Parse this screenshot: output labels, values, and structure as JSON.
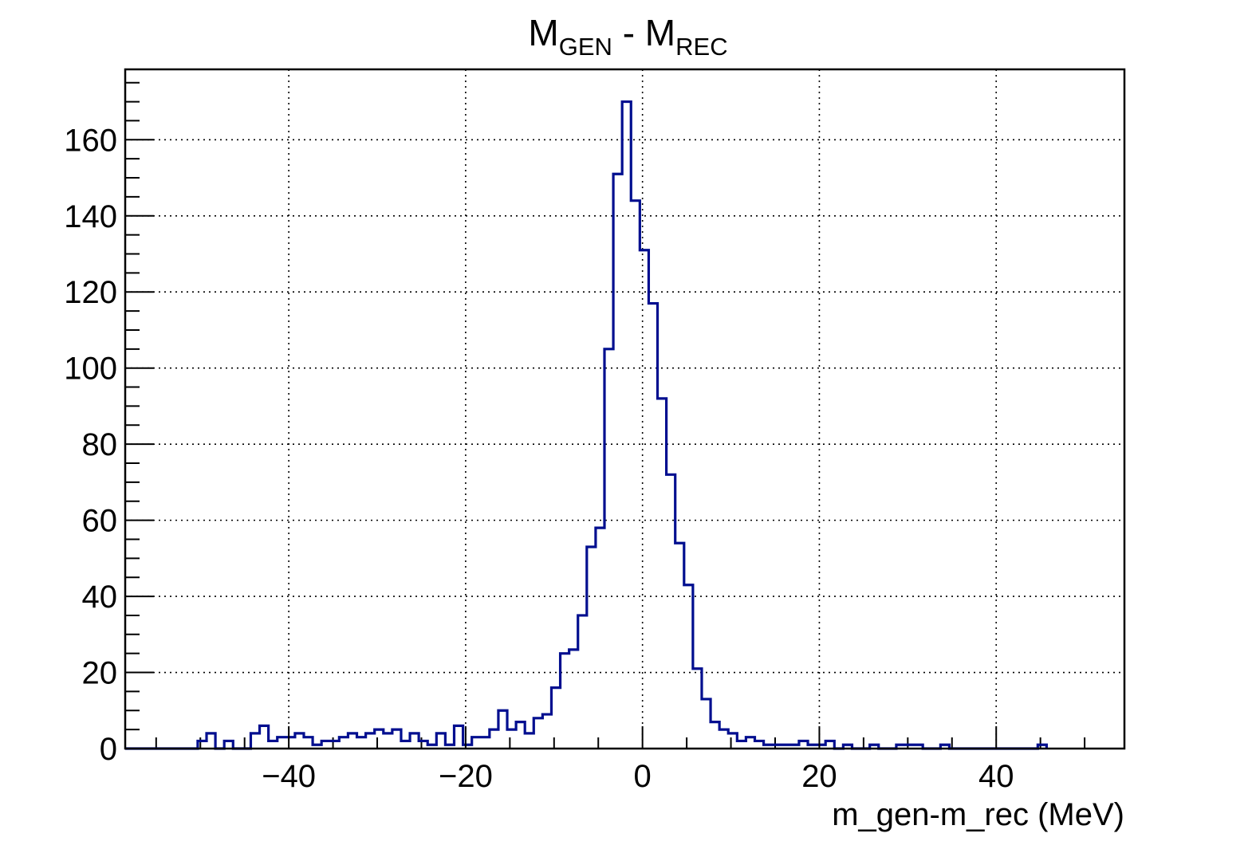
{
  "chart_data": {
    "type": "histogram",
    "title": {
      "main1": "M",
      "sub1": "GEN",
      "mid": " - M",
      "sub2": "REC"
    },
    "xlabel": "m_gen-m_rec (MeV)",
    "ylabel": "",
    "xlim": [
      -58.5,
      54.5
    ],
    "ylim": [
      0,
      178.5
    ],
    "grid": true,
    "x_ticks": [
      -40,
      -20,
      0,
      20,
      40
    ],
    "x_tick_labels": [
      "−40",
      "−20",
      "0",
      "20",
      "40"
    ],
    "y_ticks": [
      0,
      20,
      40,
      60,
      80,
      100,
      120,
      140,
      160
    ],
    "y_tick_labels": [
      "0",
      "20",
      "40",
      "60",
      "80",
      "100",
      "120",
      "140",
      "160"
    ],
    "bin_start": -50.6,
    "bin_width": 0.567,
    "values": [
      1,
      1,
      2,
      2,
      0,
      1,
      1,
      0,
      1,
      1,
      0,
      0,
      2,
      2,
      1,
      3,
      3,
      1,
      2,
      1,
      1,
      2,
      2,
      1,
      2,
      2,
      3,
      1,
      1,
      2,
      2,
      1,
      2,
      2,
      2,
      2,
      2,
      2,
      3,
      3,
      2,
      2,
      3,
      3,
      2,
      3,
      3,
      2,
      3,
      3,
      4,
      4,
      3,
      2,
      3,
      1,
      2,
      2,
      1,
      2,
      2,
      0,
      1,
      1,
      0,
      1,
      1,
      1,
      0,
      1,
      1,
      0,
      0,
      1,
      1,
      0,
      0,
      0,
      1,
      1,
      1,
      1,
      1,
      1,
      0,
      1,
      0,
      0,
      1,
      0,
      0,
      0,
      0,
      0,
      1,
      0,
      0,
      0,
      0,
      0,
      0,
      0,
      0,
      0,
      0,
      0,
      0,
      0,
      0,
      0,
      0,
      0,
      0,
      0,
      0,
      0,
      0,
      0,
      0,
      0,
      0,
      0,
      0,
      0,
      0,
      0,
      0,
      0,
      0,
      0,
      0,
      0,
      0,
      0,
      0,
      0,
      0,
      0,
      0,
      0,
      0,
      0,
      0,
      0,
      0,
      0,
      0,
      0,
      0,
      0,
      0,
      0,
      0,
      0,
      0,
      0,
      0,
      0,
      0,
      0,
      0,
      0,
      0,
      0,
      0,
      0,
      0,
      0,
      0,
      0,
      0,
      0,
      0,
      0,
      0,
      0,
      0,
      0,
      0,
      0,
      0,
      0,
      0,
      0,
      0,
      0,
      0,
      0,
      0,
      0,
      0,
      0,
      0,
      0,
      0,
      0,
      0,
      0
    ],
    "series": [
      {
        "color": "#000e8f",
        "bin_edges": [
          -50.3,
          -49.3,
          -48.3,
          -47.3,
          -46.3,
          -45.3,
          -44.3,
          -43.3,
          -42.3,
          -41.3,
          -40.3,
          -39.3,
          -38.3,
          -37.3,
          -36.3,
          -35.3,
          -34.3,
          -33.3,
          -32.3,
          -31.3,
          -30.3,
          -29.3,
          -28.3,
          -27.3,
          -26.3,
          -25.3,
          -24.3,
          -23.3,
          -22.3,
          -21.3,
          -20.3,
          -19.3,
          -18.3,
          -17.3,
          -16.3,
          -15.3,
          -14.3,
          -13.3,
          -12.3,
          -11.3,
          -10.3,
          -9.3,
          -8.3,
          -7.3,
          -6.3,
          -5.3,
          -4.3,
          -3.3,
          -2.3,
          -1.3,
          -0.3,
          0.7,
          1.7,
          2.7,
          3.7,
          4.7,
          5.7,
          6.7,
          7.7,
          8.7,
          9.7,
          10.7,
          11.7,
          12.7,
          13.7,
          14.7,
          15.7,
          16.7,
          17.7,
          18.7,
          19.7,
          20.7,
          21.7,
          22.7,
          23.7,
          24.7,
          25.7,
          26.7,
          27.7,
          28.7,
          29.7,
          30.7,
          31.7,
          32.7,
          33.7,
          34.7,
          35.7,
          36.7,
          37.7,
          38.7,
          39.7,
          40.7,
          41.7,
          42.7,
          43.7,
          44.7,
          45.7
        ],
        "counts": [
          2,
          4,
          0,
          2,
          0,
          0,
          4,
          6,
          2,
          3,
          3,
          4,
          3,
          1,
          2,
          2,
          3,
          4,
          3,
          4,
          5,
          4,
          5,
          2,
          4,
          2,
          1,
          4,
          1,
          6,
          1,
          3,
          3,
          5,
          10,
          5,
          7,
          4,
          8,
          9,
          16,
          25,
          26,
          35,
          53,
          58,
          105,
          151,
          170,
          144,
          131,
          117,
          92,
          72,
          54,
          43,
          21,
          13,
          7,
          5,
          4,
          2,
          3,
          2,
          1,
          1,
          1,
          1,
          2,
          1,
          1,
          2,
          0,
          1,
          0,
          0,
          1,
          0,
          0,
          1,
          1,
          1,
          0,
          0,
          1,
          0,
          0,
          0,
          0,
          0,
          0,
          0,
          0,
          0,
          0,
          1,
          0
        ],
        "name": ""
      }
    ]
  }
}
